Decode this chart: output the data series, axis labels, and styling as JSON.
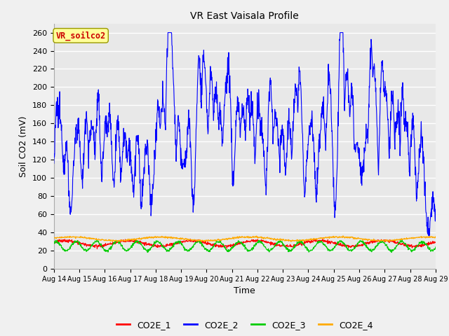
{
  "title": "VR East Vaisala Profile",
  "xlabel": "Time",
  "ylabel": "Soil CO2 (mV)",
  "annotation": "VR_soilco2",
  "ylim": [
    0,
    270
  ],
  "yticks": [
    0,
    20,
    40,
    60,
    80,
    100,
    120,
    140,
    160,
    180,
    200,
    220,
    240,
    260
  ],
  "x_tick_labels": [
    "Aug 14",
    "Aug 15",
    "Aug 16",
    "Aug 17",
    "Aug 18",
    "Aug 19",
    "Aug 20",
    "Aug 21",
    "Aug 22",
    "Aug 23",
    "Aug 24",
    "Aug 25",
    "Aug 26",
    "Aug 27",
    "Aug 28",
    "Aug 29"
  ],
  "colors": {
    "CO2E_1": "#ff0000",
    "CO2E_2": "#0000ff",
    "CO2E_3": "#00cc00",
    "CO2E_4": "#ffaa00"
  },
  "background_color": "#f0f0f0",
  "plot_bg_color": "#e8e8e8",
  "grid_color": "#ffffff",
  "annotation_box_color": "#ffff99",
  "annotation_text_color": "#cc0000",
  "annotation_border_color": "#999900",
  "figsize": [
    6.4,
    4.8
  ],
  "dpi": 100
}
